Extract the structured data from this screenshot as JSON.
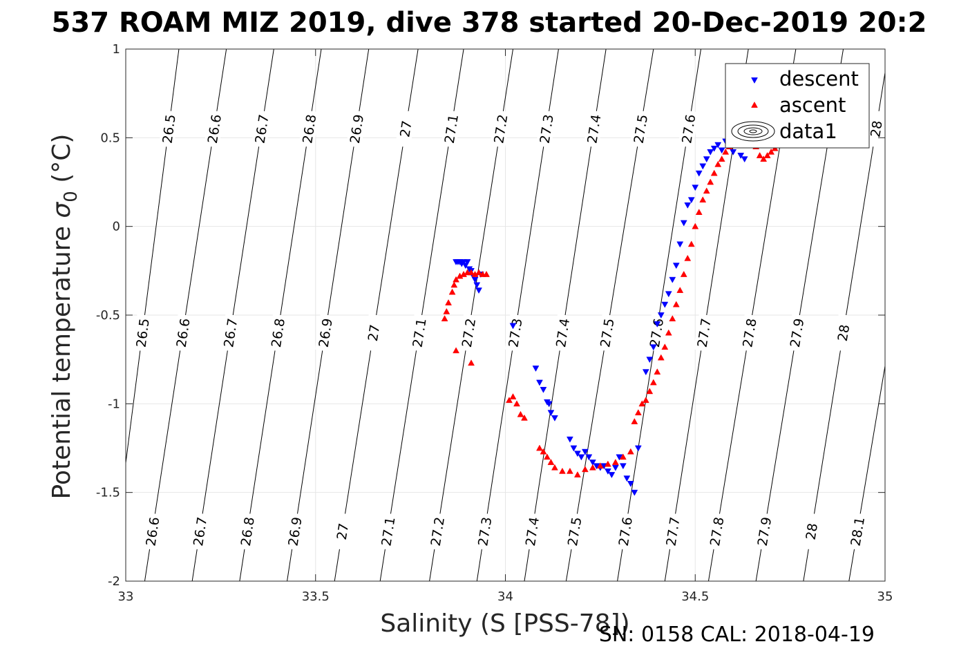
{
  "chart_data": {
    "type": "scatter",
    "title": "537 ROAM MIZ 2019, dive 378 started 20-Dec-2019 20:2",
    "xlabel": "Salinity (S [PSS-78])",
    "ylabel_main": "Potential temperature ",
    "ylabel_sym": "σ",
    "ylabel_sub": "0",
    "ylabel_unit": " (°C)",
    "footer": "SN: 0158  CAL: 2018-04-19",
    "xlim": [
      33,
      35
    ],
    "ylim": [
      -2,
      1
    ],
    "grid": true,
    "xticks": [
      33,
      33.5,
      34,
      34.5,
      35
    ],
    "xtick_labels": [
      "33",
      "33.5",
      "34",
      "34.5",
      "35"
    ],
    "yticks": [
      -2,
      -1.5,
      -1,
      -0.5,
      0,
      0.5,
      1
    ],
    "ytick_labels": [
      "-2",
      "-1.5",
      "-1",
      "-0.5",
      "0",
      "0.5",
      "1"
    ],
    "legend_position": "top-right",
    "colors": {
      "descent": "#0000ff",
      "ascent": "#ff0000",
      "contour": "#000000",
      "grid": "#e6e6e6"
    },
    "density_contours": {
      "levels": [
        26.5,
        26.6,
        26.7,
        26.8,
        26.9,
        27.0,
        27.1,
        27.2,
        27.3,
        27.4,
        27.5,
        27.6,
        27.7,
        27.8,
        27.9,
        28.0,
        28.1
      ],
      "label_texts": [
        "26.5",
        "26.6",
        "26.7",
        "26.8",
        "26.9",
        "27",
        "27.1",
        "27.2",
        "27.3",
        "27.4",
        "27.5",
        "27.6",
        "27.7",
        "27.8",
        "27.9",
        "28",
        "28.1"
      ],
      "salinity_at_temp_minus2": [
        32.96,
        33.05,
        33.175,
        33.3,
        33.425,
        33.55,
        33.67,
        33.8,
        33.925,
        34.05,
        34.16,
        34.295,
        34.42,
        34.535,
        34.66,
        34.785,
        34.905
      ],
      "salinity_at_temp_1": [
        33.14,
        33.265,
        33.39,
        33.515,
        33.64,
        33.77,
        33.89,
        34.02,
        34.14,
        34.265,
        34.39,
        34.515,
        34.64,
        34.765,
        34.89,
        35.01,
        35.14
      ],
      "label_rows_temp": [
        -1.72,
        -0.6,
        0.55
      ]
    },
    "series": [
      {
        "name": "descent",
        "marker": "triangle-down",
        "x": [
          33.87,
          33.875,
          33.88,
          33.885,
          33.89,
          33.895,
          33.9,
          33.905,
          33.91,
          33.915,
          33.92,
          33.925,
          33.93,
          33.935,
          34.02,
          34.08,
          34.09,
          34.1,
          34.11,
          34.115,
          34.12,
          34.13,
          34.17,
          34.18,
          34.19,
          34.2,
          34.21,
          34.22,
          34.23,
          34.24,
          34.25,
          34.26,
          34.27,
          34.28,
          34.29,
          34.3,
          34.31,
          34.32,
          34.33,
          34.34,
          34.35,
          34.37,
          34.38,
          34.39,
          34.4,
          34.41,
          34.42,
          34.43,
          34.44,
          34.45,
          34.46,
          34.47,
          34.48,
          34.49,
          34.5,
          34.51,
          34.52,
          34.53,
          34.54,
          34.55,
          34.56,
          34.57,
          34.58,
          34.6,
          34.62,
          34.63
        ],
        "y": [
          -0.2,
          -0.2,
          -0.2,
          -0.21,
          -0.2,
          -0.22,
          -0.2,
          -0.24,
          -0.25,
          -0.28,
          -0.3,
          -0.33,
          -0.36,
          -0.27,
          -0.56,
          -0.8,
          -0.88,
          -0.92,
          -0.99,
          -1.0,
          -1.05,
          -1.08,
          -1.2,
          -1.25,
          -1.28,
          -1.3,
          -1.27,
          -1.3,
          -1.33,
          -1.35,
          -1.36,
          -1.35,
          -1.38,
          -1.4,
          -1.36,
          -1.3,
          -1.35,
          -1.42,
          -1.45,
          -1.5,
          -1.25,
          -0.82,
          -0.75,
          -0.68,
          -0.55,
          -0.5,
          -0.44,
          -0.38,
          -0.3,
          -0.22,
          -0.1,
          0.02,
          0.12,
          0.15,
          0.22,
          0.3,
          0.34,
          0.38,
          0.42,
          0.44,
          0.46,
          0.43,
          0.48,
          0.42,
          0.4,
          0.38
        ]
      },
      {
        "name": "ascent",
        "marker": "triangle-up",
        "x": [
          33.84,
          33.845,
          33.85,
          33.86,
          33.865,
          33.87,
          33.88,
          33.89,
          33.9,
          33.91,
          33.92,
          33.93,
          33.94,
          33.95,
          33.87,
          33.91,
          34.01,
          34.02,
          34.03,
          34.04,
          34.05,
          34.09,
          34.1,
          34.11,
          34.12,
          34.13,
          34.15,
          34.17,
          34.19,
          34.21,
          34.23,
          34.25,
          34.27,
          34.29,
          34.31,
          34.33,
          34.34,
          34.35,
          34.36,
          34.37,
          34.38,
          34.39,
          34.4,
          34.41,
          34.42,
          34.43,
          34.44,
          34.45,
          34.46,
          34.47,
          34.48,
          34.49,
          34.5,
          34.51,
          34.52,
          34.53,
          34.54,
          34.55,
          34.56,
          34.57,
          34.58,
          34.59,
          34.6,
          34.62,
          34.64,
          34.66,
          34.67,
          34.68,
          34.69,
          34.7,
          34.71
        ],
        "y": [
          -0.52,
          -0.48,
          -0.43,
          -0.37,
          -0.33,
          -0.3,
          -0.28,
          -0.27,
          -0.26,
          -0.26,
          -0.27,
          -0.26,
          -0.27,
          -0.27,
          -0.7,
          -0.77,
          -0.98,
          -0.96,
          -1.0,
          -1.06,
          -1.08,
          -1.25,
          -1.27,
          -1.3,
          -1.33,
          -1.36,
          -1.38,
          -1.38,
          -1.4,
          -1.37,
          -1.36,
          -1.35,
          -1.34,
          -1.33,
          -1.3,
          -1.27,
          -1.1,
          -1.05,
          -1.0,
          -0.98,
          -0.93,
          -0.88,
          -0.82,
          -0.74,
          -0.68,
          -0.6,
          -0.52,
          -0.44,
          -0.36,
          -0.27,
          -0.18,
          -0.1,
          0.0,
          0.08,
          0.15,
          0.2,
          0.25,
          0.3,
          0.35,
          0.38,
          0.42,
          0.45,
          0.48,
          0.52,
          0.55,
          0.45,
          0.4,
          0.38,
          0.4,
          0.42,
          0.44
        ]
      },
      {
        "name": "data1",
        "marker": "contour-ellipse"
      }
    ]
  }
}
